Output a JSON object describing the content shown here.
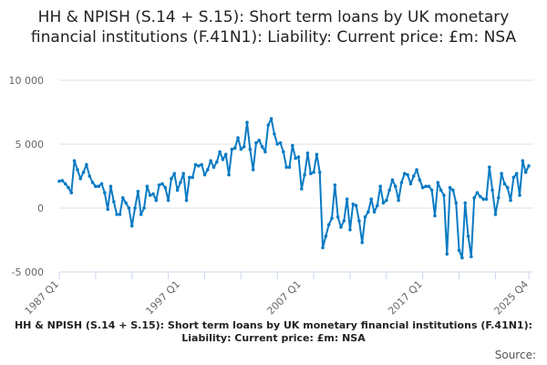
{
  "chart_data": {
    "type": "line",
    "title": "HH & NPISH (S.14 + S.15): Short term loans by UK monetary financial institutions (F.41N1): Liability: Current price: £m: NSA",
    "xlabel": "",
    "ylabel": "",
    "ylim": [
      -5000,
      10000
    ],
    "yticks": [
      {
        "v": 10000,
        "label": "10 000"
      },
      {
        "v": 5000,
        "label": "5 000"
      },
      {
        "v": 0,
        "label": "0"
      },
      {
        "v": -5000,
        "label": "-5 000"
      }
    ],
    "xticks": [
      {
        "i": 0,
        "label": "1987 Q1"
      },
      {
        "i": 40,
        "label": "1997 Q1"
      },
      {
        "i": 80,
        "label": "2007 Q1"
      },
      {
        "i": 120,
        "label": "2017 Q1"
      },
      {
        "i": 155,
        "label": "2025 Q4"
      }
    ],
    "x_start": "1987 Q1",
    "x_end": "2025 Q4",
    "grid": true,
    "color": "#0a7bc4",
    "series": [
      {
        "name": "HH & NPISH (S.14 + S.15): Short term loans by UK monetary financial institutions (F.41N1): Liability: Current price: £m: NSA",
        "values": [
          2100,
          2150,
          1900,
          1600,
          1200,
          3700,
          3000,
          2300,
          2800,
          3400,
          2500,
          2000,
          1700,
          1700,
          1900,
          1200,
          -100,
          1700,
          500,
          -500,
          -500,
          800,
          400,
          0,
          -1400,
          0,
          1300,
          -500,
          0,
          1700,
          1000,
          1100,
          600,
          1800,
          1900,
          1600,
          600,
          2300,
          2700,
          1400,
          2000,
          2700,
          600,
          2400,
          2400,
          3400,
          3300,
          3400,
          2600,
          3000,
          3700,
          3200,
          3600,
          4400,
          3800,
          4200,
          2600,
          4600,
          4700,
          5500,
          4600,
          4800,
          6700,
          4600,
          3000,
          5100,
          5300,
          4800,
          4400,
          6500,
          7000,
          5800,
          5000,
          5100,
          4400,
          3200,
          3200,
          4900,
          3900,
          4000,
          1500,
          2600,
          4300,
          2700,
          2800,
          4200,
          2800,
          -3100,
          -2200,
          -1300,
          -800,
          1800,
          -700,
          -1500,
          -1000,
          700,
          -1700,
          300,
          200,
          -1000,
          -2700,
          -700,
          -300,
          700,
          -300,
          200,
          1700,
          400,
          600,
          1400,
          2200,
          1700,
          600,
          2000,
          2700,
          2600,
          1900,
          2500,
          3000,
          2200,
          1600,
          1700,
          1700,
          1400,
          -600,
          2000,
          1400,
          1000,
          -3600,
          1600,
          1400,
          400,
          -3300,
          -3900,
          400,
          -2200,
          -3800,
          800,
          1200,
          900,
          700,
          700,
          3200,
          1400,
          -500,
          800,
          2700,
          1900,
          1600,
          600,
          2400,
          2700,
          1000,
          3700,
          2800,
          3300
        ]
      }
    ]
  },
  "footer": {
    "series_label": "HH & NPISH (S.14 + S.15): Short term loans by UK monetary financial institutions (F.41N1): Liability: Current price: £m: NSA",
    "source_label": "Source:"
  }
}
